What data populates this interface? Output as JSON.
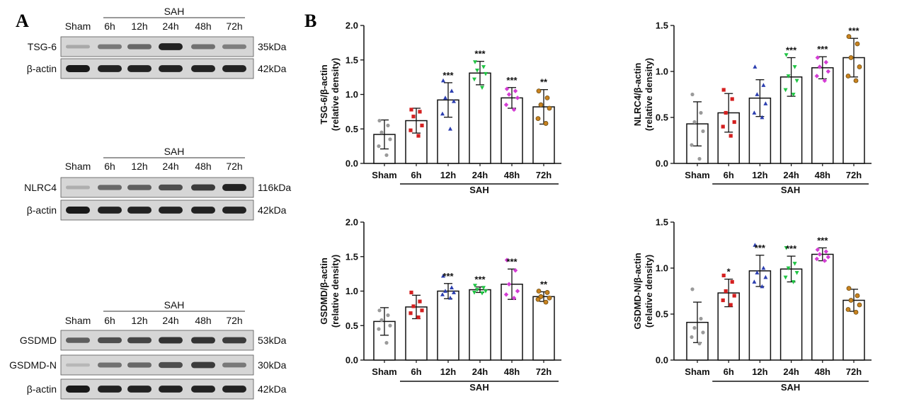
{
  "panels": {
    "a": "A",
    "b": "B"
  },
  "blots": [
    {
      "top_labels": [
        "Sham",
        "6h",
        "12h",
        "24h",
        "48h",
        "72h"
      ],
      "group_label": "SAH",
      "strips": [
        {
          "label": "TSG-6",
          "kda": "35kDa",
          "intensity": [
            0.18,
            0.45,
            0.55,
            0.95,
            0.5,
            0.42
          ]
        },
        {
          "label": "β-actin",
          "kda": "42kDa",
          "intensity": [
            1.0,
            0.95,
            0.95,
            0.95,
            0.95,
            0.95
          ]
        }
      ]
    },
    {
      "top_labels": [
        "Sham",
        "6h",
        "12h",
        "24h",
        "48h",
        "72h"
      ],
      "group_label": "SAH",
      "strips": [
        {
          "label": "NLRC4",
          "kda": "116kDa",
          "intensity": [
            0.15,
            0.55,
            0.6,
            0.7,
            0.8,
            0.95
          ]
        },
        {
          "label": "β-actin",
          "kda": "42kDa",
          "intensity": [
            1.0,
            0.95,
            0.95,
            0.95,
            0.95,
            0.95
          ]
        }
      ]
    },
    {
      "top_labels": [
        "Sham",
        "6h",
        "12h",
        "24h",
        "48h",
        "72h"
      ],
      "group_label": "SAH",
      "strips": [
        {
          "label": "GSDMD",
          "kda": "53kDa",
          "intensity": [
            0.6,
            0.7,
            0.75,
            0.85,
            0.85,
            0.8
          ]
        },
        {
          "label": "GSDMD-N",
          "kda": "30kDa",
          "intensity": [
            0.1,
            0.5,
            0.55,
            0.7,
            0.8,
            0.45
          ]
        },
        {
          "label": "β-actin",
          "kda": "42kDa",
          "intensity": [
            1.0,
            0.95,
            0.95,
            0.95,
            0.95,
            0.95
          ]
        }
      ]
    }
  ],
  "chart_data": [
    {
      "type": "bar",
      "ylabel": [
        "TSG-6/β-actin",
        "(relative density)"
      ],
      "categories": [
        "Sham",
        "6h",
        "12h",
        "24h",
        "48h",
        "72h"
      ],
      "group_label": "SAH",
      "ylim": [
        0,
        2.0
      ],
      "yticks": [
        "0.0",
        "0.5",
        "1.0",
        "1.5",
        "2.0"
      ],
      "values": [
        0.42,
        0.62,
        0.92,
        1.31,
        0.95,
        0.82
      ],
      "errors": [
        0.21,
        0.18,
        0.25,
        0.17,
        0.15,
        0.25
      ],
      "significance": [
        "",
        "",
        "***",
        "***",
        "***",
        "**"
      ],
      "points": [
        [
          0.62,
          0.55,
          0.45,
          0.35,
          0.25,
          0.12
        ],
        [
          0.78,
          0.75,
          0.68,
          0.55,
          0.48,
          0.4
        ],
        [
          1.2,
          1.05,
          0.95,
          0.9,
          0.72,
          0.5
        ],
        [
          1.47,
          1.4,
          1.35,
          1.3,
          1.22,
          1.1
        ],
        [
          1.08,
          1.05,
          1.0,
          0.95,
          0.85,
          0.78
        ],
        [
          1.05,
          0.95,
          0.85,
          0.8,
          0.65,
          0.58
        ]
      ],
      "marker_colors": [
        "#9a9a9a",
        "#d42020",
        "#2c3fb0",
        "#1fc443",
        "#d43cd4",
        "#c8821f"
      ]
    },
    {
      "type": "bar",
      "ylabel": [
        "NLRC4/β-actin",
        "(relative density)"
      ],
      "categories": [
        "Sham",
        "6h",
        "12h",
        "24h",
        "48h",
        "72h"
      ],
      "group_label": "SAH",
      "ylim": [
        0,
        1.5
      ],
      "yticks": [
        "0.0",
        "0.5",
        "1.0",
        "1.5"
      ],
      "values": [
        0.43,
        0.55,
        0.71,
        0.94,
        1.04,
        1.15
      ],
      "errors": [
        0.24,
        0.21,
        0.2,
        0.21,
        0.12,
        0.21
      ],
      "significance": [
        "",
        "",
        "",
        "***",
        "***",
        "***"
      ],
      "points": [
        [
          0.75,
          0.55,
          0.45,
          0.35,
          0.2,
          0.05
        ],
        [
          0.8,
          0.7,
          0.55,
          0.45,
          0.4,
          0.3
        ],
        [
          1.05,
          0.85,
          0.75,
          0.65,
          0.55,
          0.5
        ],
        [
          1.18,
          1.05,
          0.95,
          0.9,
          0.8,
          0.75
        ],
        [
          1.15,
          1.1,
          1.05,
          1.0,
          0.95,
          0.9
        ],
        [
          1.38,
          1.3,
          1.15,
          1.05,
          0.95,
          0.9
        ]
      ],
      "marker_colors": [
        "#9a9a9a",
        "#d42020",
        "#2c3fb0",
        "#1fc443",
        "#d43cd4",
        "#c8821f"
      ]
    },
    {
      "type": "bar",
      "ylabel": [
        "GSDMD/β-actin",
        "(relative density)"
      ],
      "categories": [
        "Sham",
        "6h",
        "12h",
        "24h",
        "48h",
        "72h"
      ],
      "group_label": "SAH",
      "ylim": [
        0,
        2.0
      ],
      "yticks": [
        "0.0",
        "0.5",
        "1.0",
        "1.5",
        "2.0"
      ],
      "values": [
        0.56,
        0.77,
        1.0,
        1.02,
        1.1,
        0.92
      ],
      "errors": [
        0.2,
        0.17,
        0.11,
        0.04,
        0.22,
        0.07
      ],
      "significance": [
        "",
        "",
        "***",
        "***",
        "***",
        "**"
      ],
      "points": [
        [
          0.72,
          0.65,
          0.58,
          0.5,
          0.45,
          0.25
        ],
        [
          0.98,
          0.85,
          0.78,
          0.72,
          0.68,
          0.62
        ],
        [
          1.22,
          1.05,
          1.0,
          0.98,
          0.95,
          0.9
        ],
        [
          1.08,
          1.05,
          1.02,
          1.0,
          0.98,
          0.97
        ],
        [
          1.45,
          1.3,
          1.1,
          1.0,
          0.95,
          0.9
        ],
        [
          1.0,
          0.98,
          0.92,
          0.9,
          0.88,
          0.84
        ]
      ],
      "marker_colors": [
        "#9a9a9a",
        "#d42020",
        "#2c3fb0",
        "#1fc443",
        "#d43cd4",
        "#c8821f"
      ]
    },
    {
      "type": "bar",
      "ylabel": [
        "GSDMD-N/β-actin",
        "(relative density)"
      ],
      "categories": [
        "Sham",
        "6h",
        "12h",
        "24h",
        "48h",
        "72h"
      ],
      "group_label": "SAH",
      "ylim": [
        0,
        1.5
      ],
      "yticks": [
        "0.0",
        "0.5",
        "1.0",
        "1.5"
      ],
      "values": [
        0.41,
        0.73,
        0.97,
        0.99,
        1.15,
        0.65
      ],
      "errors": [
        0.22,
        0.15,
        0.17,
        0.14,
        0.07,
        0.12
      ],
      "significance": [
        "",
        "*",
        "***",
        "***",
        "***",
        ""
      ],
      "points": [
        [
          0.77,
          0.45,
          0.35,
          0.3,
          0.25,
          0.18
        ],
        [
          0.92,
          0.85,
          0.75,
          0.7,
          0.65,
          0.6
        ],
        [
          1.25,
          1.0,
          0.95,
          0.9,
          0.85,
          0.8
        ],
        [
          1.22,
          1.05,
          1.0,
          0.95,
          0.9,
          0.85
        ],
        [
          1.2,
          1.18,
          1.15,
          1.12,
          1.1,
          1.08
        ],
        [
          0.78,
          0.7,
          0.65,
          0.6,
          0.55,
          0.52
        ]
      ],
      "marker_colors": [
        "#9a9a9a",
        "#d42020",
        "#2c3fb0",
        "#1fc443",
        "#d43cd4",
        "#c8821f"
      ]
    }
  ]
}
